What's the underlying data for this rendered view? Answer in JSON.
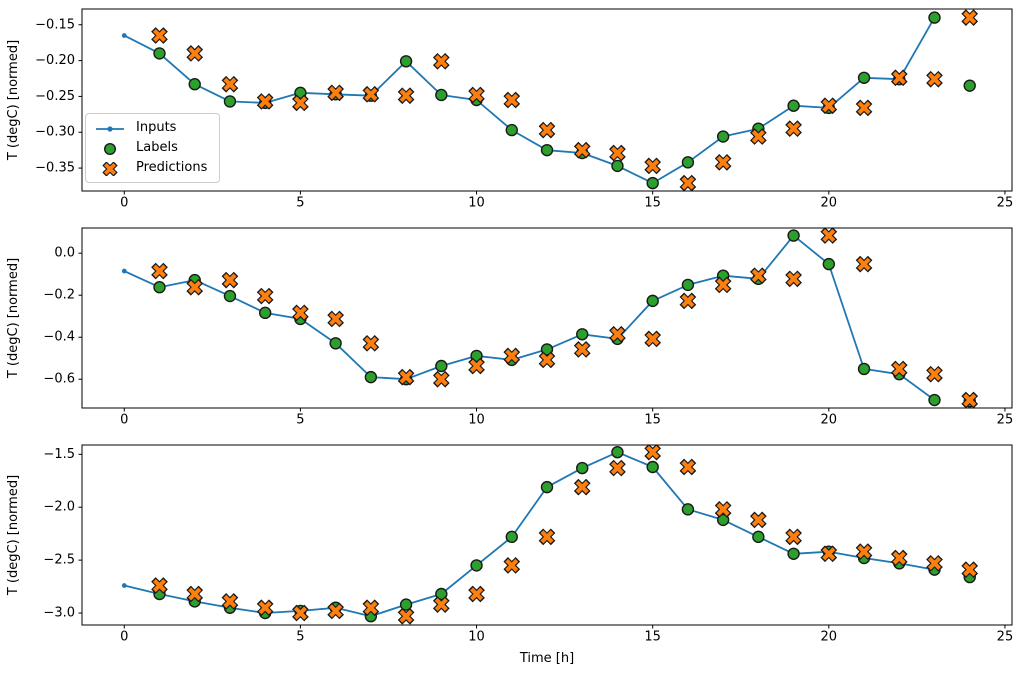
{
  "figure": {
    "background": "#ffffff",
    "xlabel": "Time [h]",
    "ylabel": "T (degC) [normed]"
  },
  "colors": {
    "inputs": "#1f77b4",
    "labels": "#2ca02c",
    "predictions": "#ff7f0e",
    "marker_edge": "#1a1a1a",
    "spine": "#000000",
    "text": "#000000",
    "legend_border": "#cccccc"
  },
  "legend": {
    "location": "upper-left-subplot-1",
    "items": [
      "Inputs",
      "Labels",
      "Predictions"
    ]
  },
  "chart_data": [
    {
      "type": "line",
      "title": "",
      "xlabel": "",
      "ylabel": "T (degC) [normed]",
      "xlim": [
        -1.2,
        25.2
      ],
      "ylim": [
        -0.382,
        -0.128
      ],
      "xticks": [
        0,
        5,
        10,
        15,
        20,
        25
      ],
      "xtick_labels": [
        "0",
        "5",
        "10",
        "15",
        "20",
        "25"
      ],
      "yticks": [
        -0.15,
        -0.2,
        -0.25,
        -0.3,
        -0.35
      ],
      "ytick_labels": [
        "−0.15",
        "−0.20",
        "−0.25",
        "−0.30",
        "−0.35"
      ],
      "grid": false,
      "legend_visible": true,
      "series": [
        {
          "name": "Inputs",
          "style": "line_dot",
          "color": "#1f77b4",
          "x": [
            0,
            1,
            2,
            3,
            4,
            5,
            6,
            7,
            8,
            9,
            10,
            11,
            12,
            13,
            14,
            15,
            16,
            17,
            18,
            19,
            20,
            21,
            22,
            23
          ],
          "y": [
            -0.165,
            -0.19,
            -0.233,
            -0.257,
            -0.259,
            -0.245,
            -0.247,
            -0.249,
            -0.201,
            -0.248,
            -0.255,
            -0.297,
            -0.325,
            -0.329,
            -0.347,
            -0.371,
            -0.342,
            -0.306,
            -0.295,
            -0.263,
            -0.266,
            -0.224,
            -0.226,
            -0.14
          ]
        },
        {
          "name": "Labels",
          "style": "scatter_circle",
          "color": "#2ca02c",
          "x": [
            1,
            2,
            3,
            4,
            5,
            6,
            7,
            8,
            9,
            10,
            11,
            12,
            13,
            14,
            15,
            16,
            17,
            18,
            19,
            20,
            21,
            22,
            23,
            24
          ],
          "y": [
            -0.19,
            -0.233,
            -0.257,
            -0.259,
            -0.245,
            -0.247,
            -0.249,
            -0.201,
            -0.248,
            -0.255,
            -0.297,
            -0.325,
            -0.329,
            -0.347,
            -0.371,
            -0.342,
            -0.306,
            -0.295,
            -0.263,
            -0.266,
            -0.224,
            -0.226,
            -0.14,
            -0.235
          ]
        },
        {
          "name": "Predictions",
          "style": "scatter_x",
          "color": "#ff7f0e",
          "x": [
            1,
            2,
            3,
            4,
            5,
            6,
            7,
            8,
            9,
            10,
            11,
            12,
            13,
            14,
            15,
            16,
            17,
            18,
            19,
            20,
            21,
            22,
            23,
            24
          ],
          "y": [
            -0.165,
            -0.19,
            -0.233,
            -0.257,
            -0.259,
            -0.245,
            -0.247,
            -0.249,
            -0.201,
            -0.248,
            -0.255,
            -0.297,
            -0.325,
            -0.329,
            -0.347,
            -0.371,
            -0.342,
            -0.306,
            -0.295,
            -0.263,
            -0.266,
            -0.224,
            -0.226,
            -0.14
          ]
        }
      ]
    },
    {
      "type": "line",
      "title": "",
      "xlabel": "",
      "ylabel": "T (degC) [normed]",
      "xlim": [
        -1.2,
        25.2
      ],
      "ylim": [
        -0.737,
        0.12
      ],
      "xticks": [
        0,
        5,
        10,
        15,
        20,
        25
      ],
      "xtick_labels": [
        "0",
        "5",
        "10",
        "15",
        "20",
        "25"
      ],
      "yticks": [
        0.0,
        -0.2,
        -0.4,
        -0.6
      ],
      "ytick_labels": [
        "0.0",
        "−0.2",
        "−0.4",
        "−0.6"
      ],
      "grid": false,
      "legend_visible": false,
      "series": [
        {
          "name": "Inputs",
          "style": "line_dot",
          "color": "#1f77b4",
          "x": [
            0,
            1,
            2,
            3,
            4,
            5,
            6,
            7,
            8,
            9,
            10,
            11,
            12,
            13,
            14,
            15,
            16,
            17,
            18,
            19,
            20,
            21,
            22,
            23
          ],
          "y": [
            -0.085,
            -0.162,
            -0.128,
            -0.204,
            -0.284,
            -0.313,
            -0.429,
            -0.59,
            -0.6,
            -0.537,
            -0.489,
            -0.508,
            -0.458,
            -0.386,
            -0.408,
            -0.227,
            -0.151,
            -0.107,
            -0.122,
            0.084,
            -0.052,
            -0.551,
            -0.576,
            -0.699
          ]
        },
        {
          "name": "Labels",
          "style": "scatter_circle",
          "color": "#2ca02c",
          "x": [
            1,
            2,
            3,
            4,
            5,
            6,
            7,
            8,
            9,
            10,
            11,
            12,
            13,
            14,
            15,
            16,
            17,
            18,
            19,
            20,
            21,
            22,
            23,
            24
          ],
          "y": [
            -0.162,
            -0.128,
            -0.204,
            -0.284,
            -0.313,
            -0.429,
            -0.59,
            -0.6,
            -0.537,
            -0.489,
            -0.508,
            -0.458,
            -0.386,
            -0.408,
            -0.227,
            -0.151,
            -0.107,
            -0.122,
            0.084,
            -0.052,
            -0.551,
            -0.576,
            -0.699,
            -0.705
          ]
        },
        {
          "name": "Predictions",
          "style": "scatter_x",
          "color": "#ff7f0e",
          "x": [
            1,
            2,
            3,
            4,
            5,
            6,
            7,
            8,
            9,
            10,
            11,
            12,
            13,
            14,
            15,
            16,
            17,
            18,
            19,
            20,
            21,
            22,
            23,
            24
          ],
          "y": [
            -0.085,
            -0.162,
            -0.128,
            -0.204,
            -0.284,
            -0.313,
            -0.429,
            -0.59,
            -0.6,
            -0.537,
            -0.489,
            -0.508,
            -0.458,
            -0.386,
            -0.408,
            -0.227,
            -0.151,
            -0.107,
            -0.122,
            0.084,
            -0.052,
            -0.551,
            -0.576,
            -0.699
          ]
        }
      ]
    },
    {
      "type": "line",
      "title": "",
      "xlabel": "Time [h]",
      "ylabel": "T (degC) [normed]",
      "xlim": [
        -1.2,
        25.2
      ],
      "ylim": [
        -3.113,
        -1.412
      ],
      "xticks": [
        0,
        5,
        10,
        15,
        20,
        25
      ],
      "xtick_labels": [
        "0",
        "5",
        "10",
        "15",
        "20",
        "25"
      ],
      "yticks": [
        -1.5,
        -2.0,
        -2.5,
        -3.0
      ],
      "ytick_labels": [
        "−1.5",
        "−2.0",
        "−2.5",
        "−3.0"
      ],
      "grid": false,
      "legend_visible": false,
      "series": [
        {
          "name": "Inputs",
          "style": "line_dot",
          "color": "#1f77b4",
          "x": [
            0,
            1,
            2,
            3,
            4,
            5,
            6,
            7,
            8,
            9,
            10,
            11,
            12,
            13,
            14,
            15,
            16,
            17,
            18,
            19,
            20,
            21,
            22,
            23
          ],
          "y": [
            -2.74,
            -2.82,
            -2.89,
            -2.95,
            -3.0,
            -2.98,
            -2.95,
            -3.03,
            -2.92,
            -2.82,
            -2.55,
            -2.28,
            -1.81,
            -1.63,
            -1.48,
            -1.62,
            -2.02,
            -2.12,
            -2.28,
            -2.44,
            -2.42,
            -2.48,
            -2.53,
            -2.59
          ]
        },
        {
          "name": "Labels",
          "style": "scatter_circle",
          "color": "#2ca02c",
          "x": [
            1,
            2,
            3,
            4,
            5,
            6,
            7,
            8,
            9,
            10,
            11,
            12,
            13,
            14,
            15,
            16,
            17,
            18,
            19,
            20,
            21,
            22,
            23,
            24
          ],
          "y": [
            -2.82,
            -2.89,
            -2.95,
            -3.0,
            -2.98,
            -2.95,
            -3.03,
            -2.92,
            -2.82,
            -2.55,
            -2.28,
            -1.81,
            -1.63,
            -1.48,
            -1.62,
            -2.02,
            -2.12,
            -2.28,
            -2.44,
            -2.42,
            -2.48,
            -2.53,
            -2.59,
            -2.66
          ]
        },
        {
          "name": "Predictions",
          "style": "scatter_x",
          "color": "#ff7f0e",
          "x": [
            1,
            2,
            3,
            4,
            5,
            6,
            7,
            8,
            9,
            10,
            11,
            12,
            13,
            14,
            15,
            16,
            17,
            18,
            19,
            20,
            21,
            22,
            23,
            24
          ],
          "y": [
            -2.74,
            -2.82,
            -2.89,
            -2.95,
            -3.0,
            -2.98,
            -2.95,
            -3.03,
            -2.92,
            -2.82,
            -2.55,
            -2.28,
            -1.81,
            -1.63,
            -1.48,
            -1.62,
            -2.02,
            -2.12,
            -2.28,
            -2.44,
            -2.42,
            -2.48,
            -2.53,
            -2.59
          ]
        }
      ]
    }
  ]
}
